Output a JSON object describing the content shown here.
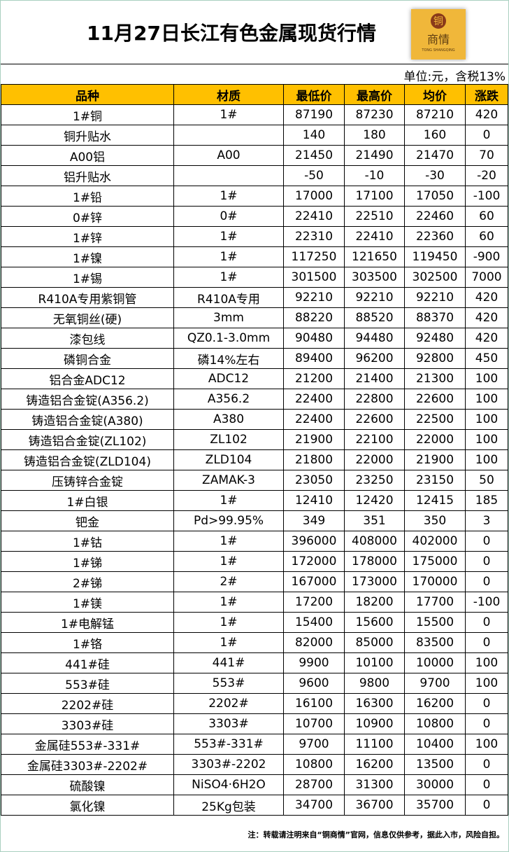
{
  "title": "11月27日长江有色金属现货行情",
  "logo": {
    "circle": "铜",
    "text": "商情",
    "sub": "TONG SHANGQING"
  },
  "unit": "单位:元，含税13%",
  "headers": [
    "品种",
    "材质",
    "最低价",
    "最高价",
    "均价",
    "涨跌"
  ],
  "rows": [
    [
      "1#铜",
      "1#",
      "87190",
      "87230",
      "87210",
      "420"
    ],
    [
      "铜升贴水",
      "",
      "140",
      "180",
      "160",
      "0"
    ],
    [
      "A00铝",
      "A00",
      "21450",
      "21490",
      "21470",
      "70"
    ],
    [
      "铝升贴水",
      "",
      "-50",
      "-10",
      "-30",
      "-20"
    ],
    [
      "1#铅",
      "1#",
      "17000",
      "17100",
      "17050",
      "-100"
    ],
    [
      "0#锌",
      "0#",
      "22410",
      "22510",
      "22460",
      "60"
    ],
    [
      "1#锌",
      "1#",
      "22310",
      "22410",
      "22360",
      "60"
    ],
    [
      "1#镍",
      "1#",
      "117250",
      "121650",
      "119450",
      "-900"
    ],
    [
      "1#锡",
      "1#",
      "301500",
      "303500",
      "302500",
      "7000"
    ],
    [
      "R410A专用紫铜管",
      "R410A专用",
      "92210",
      "92210",
      "92210",
      "420"
    ],
    [
      "无氧铜丝(硬)",
      "3mm",
      "88220",
      "88520",
      "88370",
      "420"
    ],
    [
      "漆包线",
      "QZ0.1-3.0mm",
      "90480",
      "94480",
      "92480",
      "420"
    ],
    [
      "磷铜合金",
      "磷14%左右",
      "89400",
      "96200",
      "92800",
      "450"
    ],
    [
      "铝合金ADC12",
      "ADC12",
      "21200",
      "21400",
      "21300",
      "100"
    ],
    [
      "铸造铝合金锭(A356.2)",
      "A356.2",
      "22400",
      "22800",
      "22600",
      "100"
    ],
    [
      "铸造铝合金锭(A380)",
      "A380",
      "22400",
      "22600",
      "22500",
      "100"
    ],
    [
      "铸造铝合金锭(ZL102)",
      "ZL102",
      "21900",
      "22100",
      "22000",
      "100"
    ],
    [
      "铸造铝合金锭(ZLD104)",
      "ZLD104",
      "21800",
      "22000",
      "21900",
      "100"
    ],
    [
      "压铸锌合金锭",
      "ZAMAK-3",
      "23050",
      "23250",
      "23150",
      "50"
    ],
    [
      "1#白银",
      "1#",
      "12410",
      "12420",
      "12415",
      "185"
    ],
    [
      "钯金",
      "Pd>99.95%",
      "349",
      "351",
      "350",
      "3"
    ],
    [
      "1#钴",
      "1#",
      "396000",
      "408000",
      "402000",
      "0"
    ],
    [
      "1#锑",
      "1#",
      "172000",
      "178000",
      "175000",
      "0"
    ],
    [
      "2#锑",
      "2#",
      "167000",
      "173000",
      "170000",
      "0"
    ],
    [
      "1#镁",
      "1#",
      "17200",
      "18200",
      "17700",
      "-100"
    ],
    [
      "1#电解锰",
      "1#",
      "15400",
      "15600",
      "15500",
      "0"
    ],
    [
      "1#铬",
      "1#",
      "82000",
      "85000",
      "83500",
      "0"
    ],
    [
      "441#硅",
      "441#",
      "9900",
      "10100",
      "10000",
      "100"
    ],
    [
      "553#硅",
      "553#",
      "9600",
      "9800",
      "9700",
      "100"
    ],
    [
      "2202#硅",
      "2202#",
      "16100",
      "16300",
      "16200",
      "0"
    ],
    [
      "3303#硅",
      "3303#",
      "10700",
      "10900",
      "10800",
      "0"
    ],
    [
      "金属硅553#-331#",
      "553#-331#",
      "9700",
      "11100",
      "10400",
      "100"
    ],
    [
      "金属硅3303#-2202#",
      "3303#-2202",
      "10800",
      "16200",
      "13500",
      "0"
    ],
    [
      "硫酸镍",
      "NiSO4·6H2O",
      "28700",
      "31300",
      "30000",
      "0"
    ],
    [
      "氯化镍",
      "25Kg包装",
      "34700",
      "36700",
      "35700",
      "0"
    ]
  ],
  "note": "注：转载请注明来自“铜商情”官网，信息仅供参考，据此入市，风险自担。",
  "colors": {
    "header_bg": "#ffc000",
    "logo_bg": "#f0b73a"
  }
}
